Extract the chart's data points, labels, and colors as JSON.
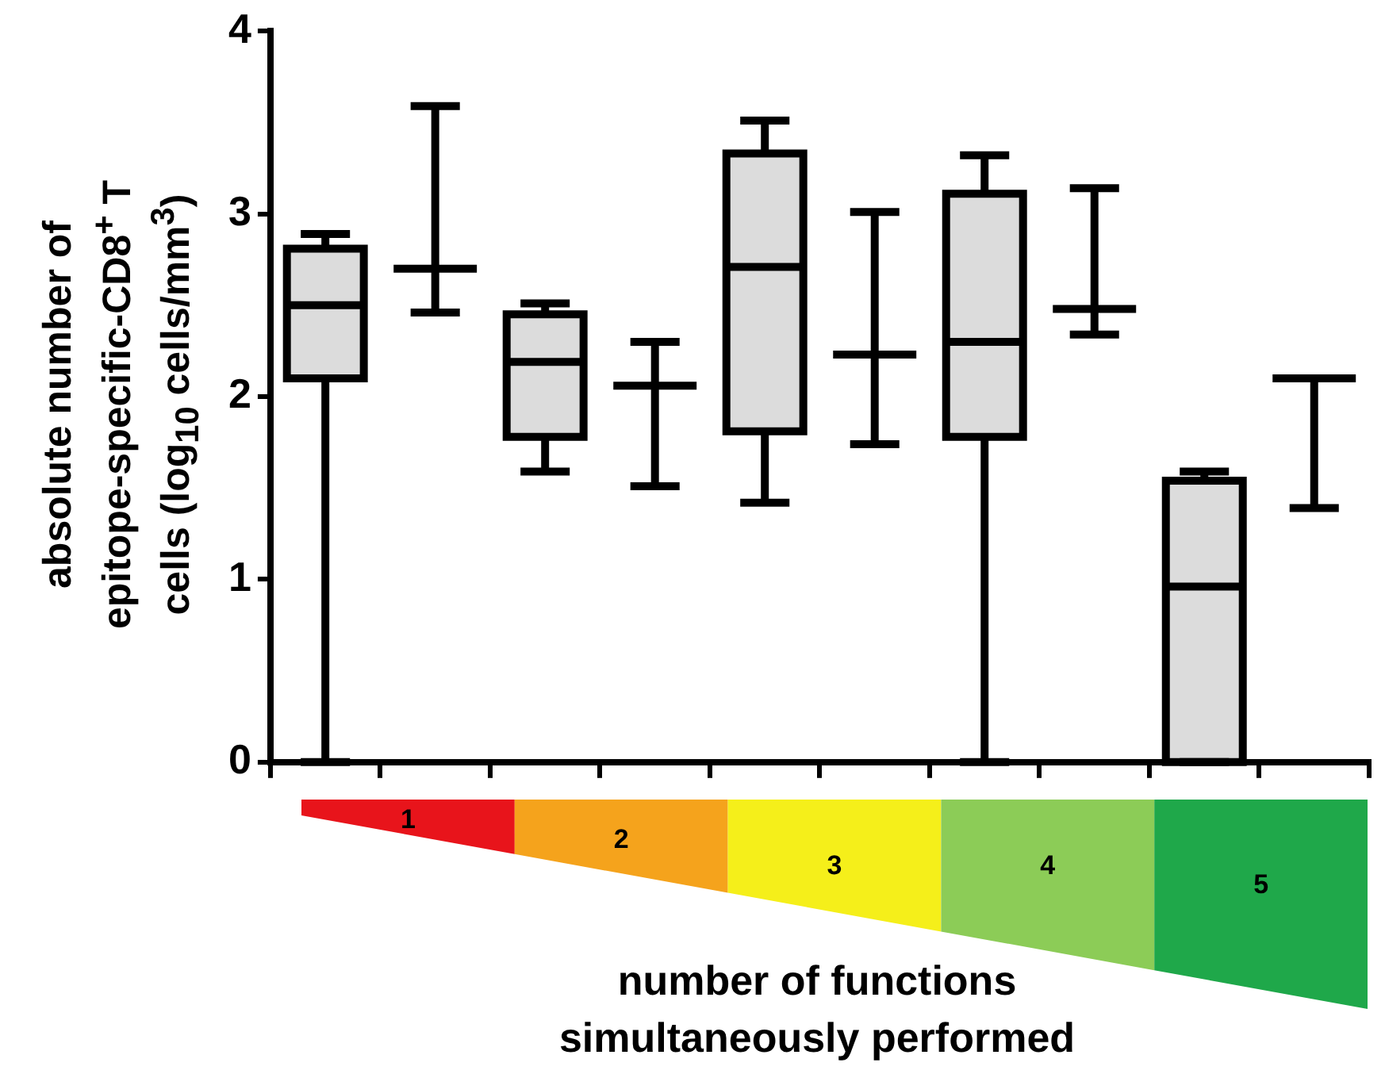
{
  "chart_data": {
    "type": "box",
    "ylabel": "absolute number of\nepitope-specific-CD8$^{+}$ T\ncells (log$_{10}$ cells/mm$^{3}$)",
    "xlabel": "number of functions\nsimultaneously performed",
    "categories": [
      null,
      null,
      null,
      null,
      null,
      null,
      null,
      null,
      null,
      null
    ],
    "series": [
      {
        "color": "#dcdcdc",
        "boxes": [
          {
            "low": 0,
            "q1": 2.1,
            "median": 2.5,
            "q3": 2.81,
            "high": 2.89
          },
          null,
          {
            "low": 1.59,
            "q1": 1.78,
            "median": 2.19,
            "q3": 2.45,
            "high": 2.51
          },
          null,
          {
            "low": 1.42,
            "q1": 1.81,
            "median": 2.71,
            "q3": 3.33,
            "high": 3.51
          },
          null,
          {
            "low": 0,
            "q1": 1.78,
            "median": 2.3,
            "q3": 3.11,
            "high": 3.32
          },
          null,
          {
            "low": 0,
            "q1": 0,
            "median": 0.96,
            "q3": 1.54,
            "high": 1.59
          },
          null
        ]
      },
      {
        "color": "#000000",
        "boxes": [
          null,
          {
            "low": 2.46,
            "q1": 2.7,
            "median": 2.7,
            "q3": 2.7,
            "high": 3.59
          },
          null,
          {
            "low": 1.51,
            "q1": 2.06,
            "median": 2.06,
            "q3": 2.06,
            "high": 2.3
          },
          null,
          {
            "low": 1.74,
            "q1": 2.23,
            "median": 2.23,
            "q3": 2.23,
            "high": 3.01
          },
          null,
          {
            "low": 2.34,
            "q1": 2.48,
            "median": 2.48,
            "q3": 2.48,
            "high": 3.14
          },
          null,
          {
            "low": 1.39,
            "q1": 2.1,
            "median": 2.1,
            "q3": 2.1,
            "high": 2.1
          }
        ]
      }
    ],
    "ylim": [
      0,
      4
    ],
    "yticks": [
      0,
      1,
      2,
      3,
      4
    ],
    "tick_labels": "y",
    "grid": false,
    "legend": false,
    "annotations": [
      "1",
      "2",
      "3",
      "4",
      "5"
    ]
  }
}
